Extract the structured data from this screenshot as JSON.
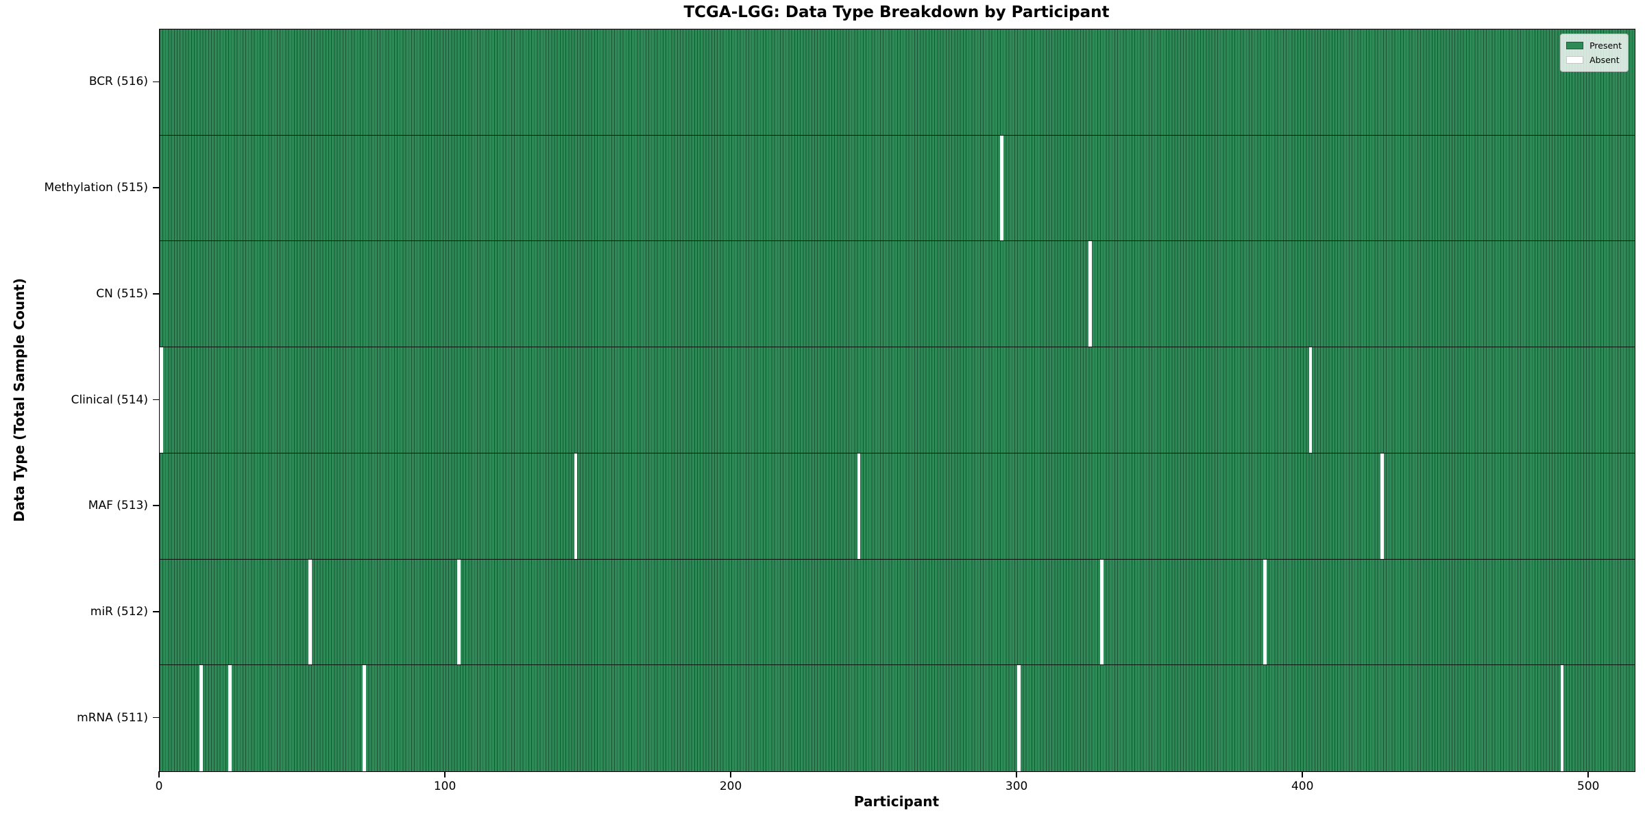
{
  "chart_data": {
    "type": "heatmap",
    "title": "TCGA-LGG: Data Type Breakdown by Participant",
    "xlabel": "Participant",
    "ylabel": "Data Type (Total Sample Count)",
    "x_range": [
      0,
      516
    ],
    "x_ticks": [
      0,
      100,
      200,
      300,
      400,
      500
    ],
    "grid": false,
    "legend_position": "upper right",
    "legend": [
      {
        "label": "Present",
        "color": "#2e8b57",
        "edge": "#1b5e3b"
      },
      {
        "label": "Absent",
        "color": "#ffffff",
        "edge": "#c8c8c8"
      }
    ],
    "colors": {
      "present_fill": "#2e8b57",
      "cell_edge": "#1e5c3b",
      "absent_fill": "#ffffff",
      "row_divider": "#000000"
    },
    "rows": [
      {
        "label": "BCR (516)",
        "data_type": "BCR",
        "total_samples": 516,
        "absent_participants": []
      },
      {
        "label": "Methylation (515)",
        "data_type": "Methylation",
        "total_samples": 515,
        "absent_participants": [
          294
        ]
      },
      {
        "label": "CN (515)",
        "data_type": "CN",
        "total_samples": 515,
        "absent_participants": [
          325
        ]
      },
      {
        "label": "Clinical (514)",
        "data_type": "Clinical",
        "total_samples": 514,
        "absent_participants": [
          0,
          402
        ]
      },
      {
        "label": "MAF (513)",
        "data_type": "MAF",
        "total_samples": 513,
        "absent_participants": [
          145,
          244,
          427
        ]
      },
      {
        "label": "miR (512)",
        "data_type": "miR",
        "total_samples": 512,
        "absent_participants": [
          52,
          104,
          329,
          386
        ]
      },
      {
        "label": "mRNA (511)",
        "data_type": "mRNA",
        "total_samples": 511,
        "absent_participants": [
          14,
          24,
          71,
          300,
          490
        ]
      }
    ]
  }
}
